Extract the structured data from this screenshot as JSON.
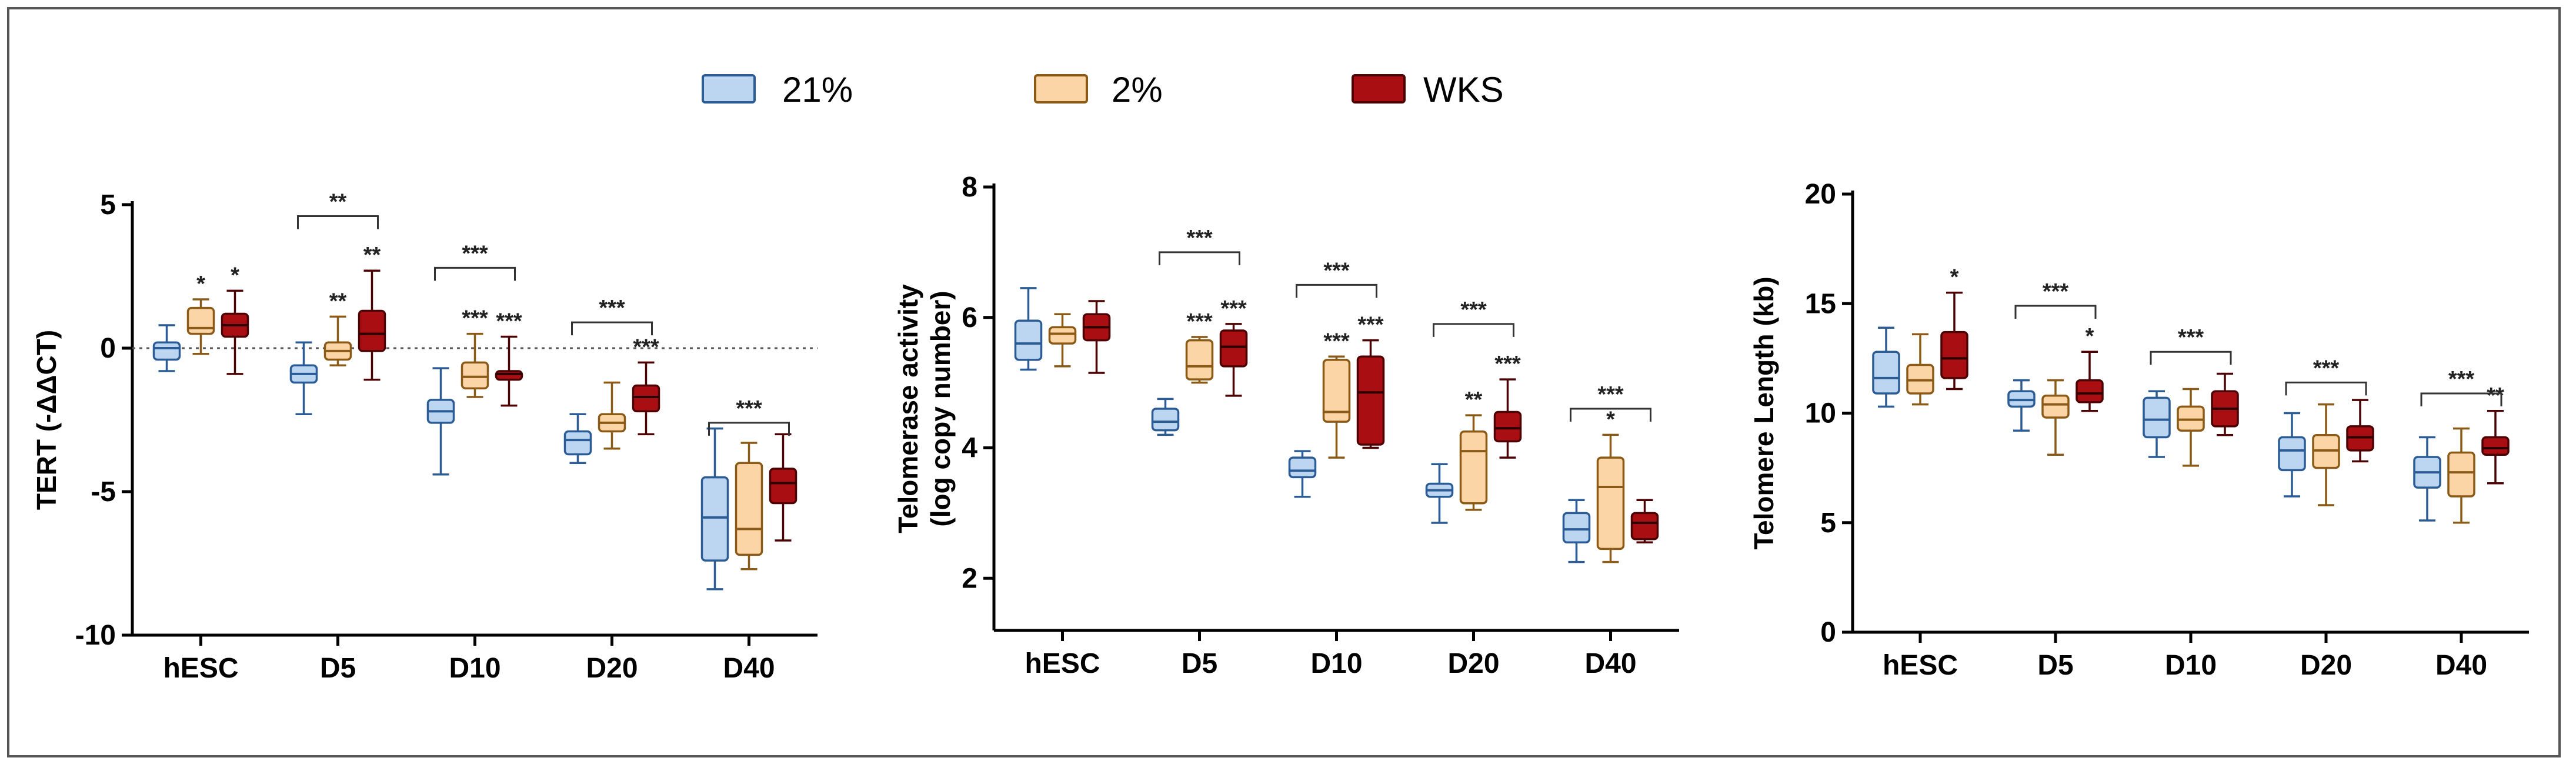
{
  "legend": [
    {
      "label": "21%",
      "color": "#bcd6f2",
      "stroke": "#2b5c95"
    },
    {
      "label": "2%",
      "color": "#fbd5a5",
      "stroke": "#8a5a16"
    },
    {
      "label": "WKS",
      "color": "#a90f12",
      "stroke": "#4c0203"
    }
  ],
  "chart_data": [
    {
      "type": "box",
      "ylabel": "TERT (-ΔΔCT)",
      "ylim": [
        -10,
        5
      ],
      "yticks": [
        -10,
        -5,
        0,
        5
      ],
      "reference_line": 0,
      "categories": [
        "hESC",
        "D5",
        "D10",
        "D20",
        "D40"
      ],
      "series": [
        {
          "name": "21%",
          "boxes": [
            {
              "min": -0.8,
              "q1": -0.4,
              "median": 0.0,
              "q3": 0.2,
              "max": 0.8
            },
            {
              "min": -2.3,
              "q1": -1.2,
              "median": -0.9,
              "q3": -0.6,
              "max": 0.2
            },
            {
              "min": -4.4,
              "q1": -2.6,
              "median": -2.2,
              "q3": -1.8,
              "max": -0.7
            },
            {
              "min": -4.0,
              "q1": -3.7,
              "median": -3.2,
              "q3": -2.9,
              "max": -2.3
            },
            {
              "min": -8.4,
              "q1": -7.4,
              "median": -5.9,
              "q3": -4.5,
              "max": -2.8
            }
          ]
        },
        {
          "name": "2%",
          "boxes": [
            {
              "min": -0.2,
              "q1": 0.5,
              "median": 0.7,
              "q3": 1.4,
              "max": 1.7
            },
            {
              "min": -0.6,
              "q1": -0.4,
              "median": -0.1,
              "q3": 0.2,
              "max": 1.1
            },
            {
              "min": -1.7,
              "q1": -1.4,
              "median": -1.0,
              "q3": -0.5,
              "max": 0.5
            },
            {
              "min": -3.5,
              "q1": -2.9,
              "median": -2.6,
              "q3": -2.3,
              "max": -1.2
            },
            {
              "min": -7.7,
              "q1": -7.2,
              "median": -6.3,
              "q3": -4.0,
              "max": -3.3
            }
          ]
        },
        {
          "name": "WKS",
          "boxes": [
            {
              "min": -0.9,
              "q1": 0.4,
              "median": 0.8,
              "q3": 1.2,
              "max": 2.0
            },
            {
              "min": -1.1,
              "q1": -0.1,
              "median": 0.5,
              "q3": 1.3,
              "max": 2.7
            },
            {
              "min": -2.0,
              "q1": -1.1,
              "median": -0.9,
              "q3": -0.8,
              "max": 0.4
            },
            {
              "min": -3.0,
              "q1": -2.2,
              "median": -1.7,
              "q3": -1.3,
              "max": -0.5
            },
            {
              "min": -6.7,
              "q1": -5.4,
              "median": -4.7,
              "q3": -4.2,
              "max": -3.0
            }
          ]
        }
      ],
      "stars": [
        [
          "",
          "*",
          "*"
        ],
        [
          "",
          "**",
          "**"
        ],
        [
          "",
          "***",
          "***"
        ],
        [
          "",
          "",
          "***"
        ],
        [
          "",
          "",
          ""
        ]
      ],
      "brackets": [
        {
          "category": 1,
          "y": 4.6,
          "label": "**"
        },
        {
          "category": 2,
          "y": 2.8,
          "label": "***"
        },
        {
          "category": 3,
          "y": 0.9,
          "label": "***"
        },
        {
          "category": 4,
          "y": -2.6,
          "label": "***"
        }
      ]
    },
    {
      "type": "box",
      "ylabel": "Telomerase activity",
      "ylabel2": "(log copy number)",
      "ylim": [
        1.2,
        8
      ],
      "yticks": [
        2,
        4,
        6,
        8
      ],
      "categories": [
        "hESC",
        "D5",
        "D10",
        "D20",
        "D40"
      ],
      "series": [
        {
          "name": "21%",
          "boxes": [
            {
              "min": 5.2,
              "q1": 5.35,
              "median": 5.6,
              "q3": 5.95,
              "max": 6.45
            },
            {
              "min": 4.2,
              "q1": 4.27,
              "median": 4.4,
              "q3": 4.6,
              "max": 4.75
            },
            {
              "min": 3.25,
              "q1": 3.55,
              "median": 3.65,
              "q3": 3.85,
              "max": 3.95
            },
            {
              "min": 2.85,
              "q1": 3.25,
              "median": 3.35,
              "q3": 3.45,
              "max": 3.75
            },
            {
              "min": 2.25,
              "q1": 2.55,
              "median": 2.75,
              "q3": 3.0,
              "max": 3.2
            }
          ]
        },
        {
          "name": "2%",
          "boxes": [
            {
              "min": 5.25,
              "q1": 5.6,
              "median": 5.75,
              "q3": 5.85,
              "max": 6.05
            },
            {
              "min": 5.0,
              "q1": 5.05,
              "median": 5.25,
              "q3": 5.65,
              "max": 5.7
            },
            {
              "min": 3.85,
              "q1": 4.4,
              "median": 4.55,
              "q3": 5.35,
              "max": 5.4
            },
            {
              "min": 3.05,
              "q1": 3.15,
              "median": 3.95,
              "q3": 4.25,
              "max": 4.5
            },
            {
              "min": 2.25,
              "q1": 2.45,
              "median": 3.4,
              "q3": 3.85,
              "max": 4.2
            }
          ]
        },
        {
          "name": "WKS",
          "boxes": [
            {
              "min": 5.15,
              "q1": 5.65,
              "median": 5.85,
              "q3": 6.05,
              "max": 6.25
            },
            {
              "min": 4.8,
              "q1": 5.25,
              "median": 5.55,
              "q3": 5.8,
              "max": 5.9
            },
            {
              "min": 4.0,
              "q1": 4.05,
              "median": 4.85,
              "q3": 5.4,
              "max": 5.65
            },
            {
              "min": 3.85,
              "q1": 4.1,
              "median": 4.3,
              "q3": 4.55,
              "max": 5.05
            },
            {
              "min": 2.55,
              "q1": 2.6,
              "median": 2.85,
              "q3": 3.0,
              "max": 3.2
            }
          ]
        }
      ],
      "stars": [
        [
          "",
          "",
          ""
        ],
        [
          "",
          "***",
          "***"
        ],
        [
          "",
          "***",
          "***"
        ],
        [
          "",
          "**",
          "***"
        ],
        [
          "",
          "*",
          ""
        ]
      ],
      "brackets": [
        {
          "category": 1,
          "y": 7.0,
          "label": "***"
        },
        {
          "category": 2,
          "y": 6.5,
          "label": "***"
        },
        {
          "category": 3,
          "y": 5.9,
          "label": "***"
        },
        {
          "category": 4,
          "y": 4.6,
          "label": "***"
        }
      ]
    },
    {
      "type": "box",
      "ylabel": "Telomere Length (kb)",
      "ylim": [
        0,
        20
      ],
      "yticks": [
        0,
        5,
        10,
        15,
        20
      ],
      "categories": [
        "hESC",
        "D5",
        "D10",
        "D20",
        "D40"
      ],
      "series": [
        {
          "name": "21%",
          "boxes": [
            {
              "min": 10.3,
              "q1": 10.9,
              "median": 11.6,
              "q3": 12.8,
              "max": 13.9
            },
            {
              "min": 9.2,
              "q1": 10.3,
              "median": 10.6,
              "q3": 11.0,
              "max": 11.5
            },
            {
              "min": 8.0,
              "q1": 8.9,
              "median": 9.7,
              "q3": 10.7,
              "max": 11.0
            },
            {
              "min": 6.2,
              "q1": 7.4,
              "median": 8.3,
              "q3": 8.9,
              "max": 10.0
            },
            {
              "min": 5.1,
              "q1": 6.6,
              "median": 7.3,
              "q3": 8.0,
              "max": 8.9
            }
          ]
        },
        {
          "name": "2%",
          "boxes": [
            {
              "min": 10.4,
              "q1": 10.9,
              "median": 11.5,
              "q3": 12.2,
              "max": 13.6
            },
            {
              "min": 8.1,
              "q1": 9.8,
              "median": 10.4,
              "q3": 10.8,
              "max": 11.5
            },
            {
              "min": 7.6,
              "q1": 9.2,
              "median": 9.7,
              "q3": 10.3,
              "max": 11.1
            },
            {
              "min": 5.8,
              "q1": 7.5,
              "median": 8.3,
              "q3": 9.0,
              "max": 10.4
            },
            {
              "min": 5.0,
              "q1": 6.2,
              "median": 7.3,
              "q3": 8.2,
              "max": 9.3
            }
          ]
        },
        {
          "name": "WKS",
          "boxes": [
            {
              "min": 11.1,
              "q1": 11.6,
              "median": 12.5,
              "q3": 13.7,
              "max": 15.5
            },
            {
              "min": 10.1,
              "q1": 10.5,
              "median": 10.9,
              "q3": 11.5,
              "max": 12.8
            },
            {
              "min": 9.0,
              "q1": 9.4,
              "median": 10.2,
              "q3": 11.0,
              "max": 11.8
            },
            {
              "min": 7.8,
              "q1": 8.3,
              "median": 8.9,
              "q3": 9.4,
              "max": 10.6
            },
            {
              "min": 6.8,
              "q1": 8.1,
              "median": 8.4,
              "q3": 8.9,
              "max": 10.1
            }
          ]
        }
      ],
      "stars": [
        [
          "",
          "",
          "*"
        ],
        [
          "",
          "",
          "*"
        ],
        [
          "",
          "",
          ""
        ],
        [
          "",
          "",
          ""
        ],
        [
          "",
          "",
          "**"
        ]
      ],
      "brackets": [
        {
          "category": 1,
          "y": 14.9,
          "label": "***"
        },
        {
          "category": 2,
          "y": 12.8,
          "label": "***"
        },
        {
          "category": 3,
          "y": 11.4,
          "label": "***"
        },
        {
          "category": 4,
          "y": 10.9,
          "label": "***"
        }
      ]
    }
  ]
}
